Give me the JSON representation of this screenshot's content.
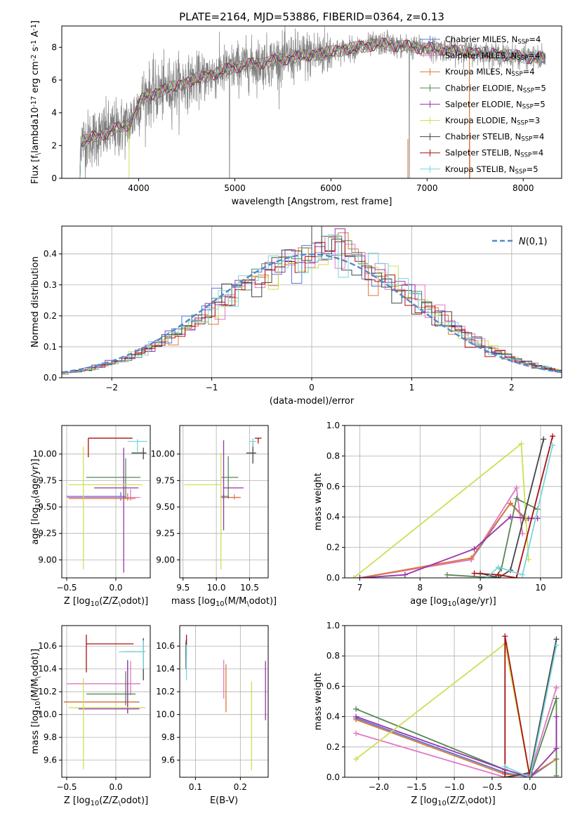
{
  "chart_data": [
    {
      "type": "line",
      "id": "spectrum",
      "title": "PLATE=2164, MJD=53886, FIBERID=0364, z=0.13",
      "xlabel": "wavelength [Angstrom, rest frame]",
      "ylabel": "Flux [f$_\\lambda$10$^{-17}$ erg cm$^{-2}$ s$^{-1}$ A$^{-1}$]",
      "xlim": [
        3200,
        8400
      ],
      "ylim": [
        0,
        9.3
      ],
      "xticks": [
        4000,
        5000,
        6000,
        7000,
        8000
      ],
      "yticks": [
        0,
        2,
        4,
        6,
        8
      ],
      "legend": "upper-right",
      "data_color": "#808080",
      "data_wavelength_range": [
        3370,
        8230
      ],
      "series": [
        {
          "name": "Chabrier MILES, N$_{SSP}$=4",
          "color": "#5577dd"
        },
        {
          "name": "Salpeter MILES, N$_{SSP}$=4",
          "color": "#e377c2"
        },
        {
          "name": "Kroupa MILES, N$_{SSP}$=4",
          "color": "#dd7733"
        },
        {
          "name": "Chabrier ELODIE, N$_{SSP}$=5",
          "color": "#558855"
        },
        {
          "name": "Salpeter ELODIE, N$_{SSP}$=5",
          "color": "#9933aa"
        },
        {
          "name": "Kroupa ELODIE, N$_{SSP}$=3",
          "color": "#cce055"
        },
        {
          "name": "Chabrier STELIB, N$_{SSP}$=4",
          "color": "#444444"
        },
        {
          "name": "Salpeter STELIB, N$_{SSP}$=4",
          "color": "#aa1111"
        },
        {
          "name": "Kroupa STELIB, N$_{SSP}$=5",
          "color": "#77d6dd"
        }
      ]
    },
    {
      "type": "histogram",
      "id": "residuals",
      "xlabel": "(data-model)/error",
      "ylabel": "Normed distribution",
      "xlim": [
        -2.5,
        2.5
      ],
      "ylim": [
        0,
        0.49
      ],
      "xticks": [
        -2,
        -1,
        0,
        1,
        2
      ],
      "yticks": [
        0.0,
        0.1,
        0.2,
        0.3,
        0.4
      ],
      "grid": true,
      "legend": "upper-right",
      "reference": {
        "name": "$\\mathcal{N}(0,1)$",
        "color": "#5588cc",
        "style": "dashed"
      }
    },
    {
      "type": "scatter",
      "id": "age-vs-Z",
      "xlabel": "Z [log$_{10}$(Z/Z$_\\odot$)]",
      "ylabel": "age  [log$_{10}$(age/yr)]",
      "xlim": [
        -0.55,
        0.35
      ],
      "ylim": [
        8.83,
        10.27
      ],
      "xticks": [
        -0.5,
        0.0
      ],
      "yticks": [
        9.0,
        9.25,
        9.5,
        9.75,
        10.0
      ],
      "grid": true,
      "points": [
        {
          "x": 0.05,
          "xerr": [
            0.55,
            0.05
          ],
          "y": 9.6,
          "yerr": [
            0.04,
            0.04
          ],
          "color": "#5577dd"
        },
        {
          "x": 0.15,
          "xerr": [
            0.65,
            0.1
          ],
          "y": 9.59,
          "yerr": [
            0.03,
            0.08
          ],
          "color": "#e377c2"
        },
        {
          "x": 0.12,
          "xerr": [
            0.6,
            0.08
          ],
          "y": 9.58,
          "yerr": [
            0.02,
            0.05
          ],
          "color": "#dd7733"
        },
        {
          "x": 0.1,
          "xerr": [
            0.4,
            0.15
          ],
          "y": 9.78,
          "yerr": [
            0.2,
            0.18
          ],
          "color": "#558855"
        },
        {
          "x": 0.08,
          "xerr": [
            0.3,
            0.15
          ],
          "y": 9.68,
          "yerr": [
            0.8,
            0.38
          ],
          "color": "#9933aa"
        },
        {
          "x": -0.33,
          "xerr": [
            0.15,
            0.6
          ],
          "y": 9.71,
          "yerr": [
            0.8,
            0.36
          ],
          "color": "#cce055"
        },
        {
          "x": 0.28,
          "xerr": [
            0.12,
            0.03
          ],
          "y": 10.01,
          "yerr": [
            0.06,
            0.05
          ],
          "color": "#444444"
        },
        {
          "x": -0.28,
          "xerr": [
            0.0,
            0.45
          ],
          "y": 10.15,
          "yerr": [
            0.18,
            0.0
          ],
          "color": "#aa1111"
        },
        {
          "x": 0.22,
          "xerr": [
            0.1,
            0.1
          ],
          "y": 10.12,
          "yerr": [
            0.1,
            0.02
          ],
          "color": "#77d6dd"
        }
      ]
    },
    {
      "type": "scatter",
      "id": "age-vs-mass",
      "xlabel": "mass [log$_{10}$(M/M$_\\odot$)]",
      "xlim": [
        9.45,
        10.78
      ],
      "ylim": [
        8.83,
        10.27
      ],
      "xticks": [
        9.5,
        10.0,
        10.5
      ],
      "yticks": [
        9.0,
        9.25,
        9.5,
        9.75,
        10.0
      ],
      "grid": true,
      "points": [
        {
          "x": 10.11,
          "xerr": [
            0.05,
            0.08
          ],
          "y": 9.6,
          "yerr": [
            0.03,
            0.03
          ],
          "color": "#5577dd"
        },
        {
          "x": 10.27,
          "xerr": [
            0.1,
            0.1
          ],
          "y": 9.59,
          "yerr": [
            0.02,
            0.03
          ],
          "color": "#e377c2"
        },
        {
          "x": 10.11,
          "xerr": [
            0.05,
            0.25
          ],
          "y": 9.59,
          "yerr": [
            0.02,
            0.02
          ],
          "color": "#dd7733"
        },
        {
          "x": 10.18,
          "xerr": [
            0.1,
            0.15
          ],
          "y": 9.78,
          "yerr": [
            0.2,
            0.2
          ],
          "color": "#558855"
        },
        {
          "x": 10.11,
          "xerr": [
            0.01,
            0.3
          ],
          "y": 9.68,
          "yerr": [
            0.4,
            0.45
          ],
          "color": "#9933aa"
        },
        {
          "x": 10.07,
          "xerr": [
            0.55,
            0.0
          ],
          "y": 9.71,
          "yerr": [
            0.8,
            0.3
          ],
          "color": "#cce055"
        },
        {
          "x": 10.55,
          "xerr": [
            0.1,
            0.05
          ],
          "y": 10.01,
          "yerr": [
            0.1,
            0.1
          ],
          "color": "#444444"
        },
        {
          "x": 10.63,
          "xerr": [
            0.05,
            0.05
          ],
          "y": 10.15,
          "yerr": [
            0.05,
            0.0
          ],
          "color": "#aa1111"
        },
        {
          "x": 10.55,
          "xerr": [
            0.05,
            0.05
          ],
          "y": 10.12,
          "yerr": [
            0.05,
            0.03
          ],
          "color": "#77d6dd"
        }
      ]
    },
    {
      "type": "line",
      "id": "weight-vs-age",
      "xlabel": "age  [log$_{10}$(age/yr)]",
      "ylabel": "mass weight",
      "xlim": [
        6.75,
        10.35
      ],
      "ylim": [
        0,
        1
      ],
      "xticks": [
        7,
        8,
        9,
        10
      ],
      "yticks": [
        0.0,
        0.2,
        0.4,
        0.6,
        0.8,
        1.0
      ],
      "grid": true,
      "series": [
        {
          "color": "#5577dd",
          "x": [
            7.0,
            8.85,
            9.5,
            9.75
          ],
          "y": [
            0.0,
            0.12,
            0.49,
            0.39
          ]
        },
        {
          "color": "#e377c2",
          "x": [
            7.0,
            8.85,
            9.6,
            9.7
          ],
          "y": [
            0.0,
            0.12,
            0.59,
            0.29
          ]
        },
        {
          "color": "#dd7733",
          "x": [
            7.0,
            8.85,
            9.5,
            9.75
          ],
          "y": [
            0.0,
            0.13,
            0.49,
            0.38
          ]
        },
        {
          "color": "#558855",
          "x": [
            8.45,
            9.25,
            9.35,
            9.6,
            9.95
          ],
          "y": [
            0.02,
            0.0,
            0.06,
            0.52,
            0.45
          ]
        },
        {
          "color": "#9933aa",
          "x": [
            7.0,
            7.75,
            8.9,
            9.5,
            9.8,
            9.95
          ],
          "y": [
            0.0,
            0.02,
            0.19,
            0.4,
            0.39,
            0.39
          ]
        },
        {
          "color": "#cce055",
          "x": [
            6.9,
            9.68,
            9.8
          ],
          "y": [
            0.0,
            0.88,
            0.12
          ]
        },
        {
          "color": "#444444",
          "x": [
            9.0,
            9.3,
            9.5,
            10.05
          ],
          "y": [
            0.03,
            0.0,
            0.05,
            0.91
          ]
        },
        {
          "color": "#aa1111",
          "x": [
            8.9,
            9.3,
            9.6,
            10.2
          ],
          "y": [
            0.03,
            0.02,
            0.0,
            0.93
          ]
        },
        {
          "color": "#77d6dd",
          "x": [
            9.1,
            9.3,
            9.7,
            10.2
          ],
          "y": [
            0.0,
            0.07,
            0.02,
            0.87
          ]
        }
      ]
    },
    {
      "type": "scatter",
      "id": "mass-vs-Z",
      "xlabel": "Z [log$_{10}$(Z/Z$_\\odot$)]",
      "ylabel": "mass [log$_{10}$(M/M$_\\odot$)]",
      "xlim": [
        -0.55,
        0.35
      ],
      "ylim": [
        9.45,
        10.78
      ],
      "xticks": [
        -0.5,
        0.0
      ],
      "yticks": [
        9.6,
        9.8,
        10.0,
        10.2,
        10.4,
        10.6
      ],
      "grid": true,
      "points": [
        {
          "x": 0.12,
          "xerr": [
            0.65,
            0.12
          ],
          "y": 10.11,
          "yerr": [
            0.1,
            0.37
          ],
          "color": "#5577dd"
        },
        {
          "x": 0.15,
          "xerr": [
            0.65,
            0.1
          ],
          "y": 10.27,
          "yerr": [
            0.1,
            0.2
          ],
          "color": "#e377c2"
        },
        {
          "x": 0.12,
          "xerr": [
            0.65,
            0.1
          ],
          "y": 10.11,
          "yerr": [
            0.05,
            0.2
          ],
          "color": "#dd7733"
        },
        {
          "x": 0.1,
          "xerr": [
            0.4,
            0.1
          ],
          "y": 10.18,
          "yerr": [
            0.1,
            0.2
          ],
          "color": "#558855"
        },
        {
          "x": 0.12,
          "xerr": [
            0.5,
            0.12
          ],
          "y": 10.05,
          "yerr": [
            0.04,
            0.42
          ],
          "color": "#9933aa"
        },
        {
          "x": -0.33,
          "xerr": [
            0.15,
            0.63
          ],
          "y": 10.06,
          "yerr": [
            0.54,
            0.26
          ],
          "color": "#cce055"
        },
        {
          "x": 0.28,
          "xerr": [
            0.2,
            0.02
          ],
          "y": 10.55,
          "yerr": [
            0.25,
            0.12
          ],
          "color": "#444444"
        },
        {
          "x": -0.3,
          "xerr": [
            0.0,
            0.48
          ],
          "y": 10.62,
          "yerr": [
            0.25,
            0.08
          ],
          "color": "#aa1111"
        },
        {
          "x": 0.28,
          "xerr": [
            0.25,
            0.02
          ],
          "y": 10.55,
          "yerr": [
            0.15,
            0.1
          ],
          "color": "#77d6dd"
        }
      ]
    },
    {
      "type": "scatter",
      "id": "mass-vs-EBV",
      "xlabel": "E(B-V)",
      "xlim": [
        0.065,
        0.262
      ],
      "ylim": [
        9.45,
        10.78
      ],
      "xticks": [
        0.1,
        0.2
      ],
      "yticks": [
        9.6,
        9.8,
        10.0,
        10.2,
        10.4,
        10.6
      ],
      "grid": true,
      "points": [
        {
          "x": 0.08,
          "y": 10.62,
          "yerr": [
            0.1,
            0.05
          ],
          "color": "#5577dd"
        },
        {
          "x": 0.163,
          "y": 10.26,
          "yerr": [
            0.12,
            0.22
          ],
          "color": "#e377c2"
        },
        {
          "x": 0.168,
          "y": 10.18,
          "yerr": [
            0.16,
            0.26
          ],
          "color": "#dd7733"
        },
        {
          "x": 0.079,
          "y": 10.57,
          "yerr": [
            0.1,
            0.08
          ],
          "color": "#558855"
        },
        {
          "x": 0.256,
          "y": 10.11,
          "yerr": [
            0.16,
            0.36
          ],
          "color": "#9933aa"
        },
        {
          "x": 0.225,
          "y": 10.06,
          "yerr": [
            0.55,
            0.23
          ],
          "color": "#cce055"
        },
        {
          "x": 0.079,
          "y": 10.6,
          "yerr": [
            0.2,
            0.03
          ],
          "color": "#444444"
        },
        {
          "x": 0.08,
          "y": 10.65,
          "yerr": [
            0.03,
            0.05
          ],
          "color": "#aa1111"
        },
        {
          "x": 0.08,
          "y": 10.55,
          "yerr": [
            0.25,
            0.06
          ],
          "color": "#77d6dd"
        }
      ]
    },
    {
      "type": "line",
      "id": "weight-vs-Z",
      "xlabel": "Z [log$_{10}$(Z/Z$_\\odot$)]",
      "ylabel": "mass weight",
      "xlim": [
        -2.45,
        0.42
      ],
      "ylim": [
        0,
        1
      ],
      "xticks": [
        -2.0,
        -1.5,
        -1.0,
        -0.5,
        0.0
      ],
      "yticks": [
        0.0,
        0.2,
        0.4,
        0.6,
        0.8,
        1.0
      ],
      "grid": true,
      "series": [
        {
          "color": "#5577dd",
          "x": [
            -2.3,
            -0.33,
            0.0,
            0.35
          ],
          "y": [
            0.39,
            0.03,
            0.0,
            0.12
          ]
        },
        {
          "color": "#e377c2",
          "x": [
            -2.3,
            -0.33,
            0.0,
            0.35,
            0.35
          ],
          "y": [
            0.29,
            0.0,
            0.02,
            0.59,
            0.59
          ]
        },
        {
          "color": "#dd7733",
          "x": [
            -2.3,
            -0.33,
            0.0,
            0.35
          ],
          "y": [
            0.38,
            0.02,
            0.01,
            0.12
          ]
        },
        {
          "color": "#558855",
          "x": [
            -2.3,
            -0.33,
            0.0,
            0.35,
            0.35
          ],
          "y": [
            0.45,
            0.05,
            0.0,
            0.52,
            0.01
          ]
        },
        {
          "color": "#9933aa",
          "x": [
            -2.3,
            -0.33,
            0.0,
            0.35,
            0.35
          ],
          "y": [
            0.4,
            0.05,
            0.0,
            0.19,
            0.4
          ]
        },
        {
          "color": "#cce055",
          "x": [
            -2.3,
            -0.33,
            0.0
          ],
          "y": [
            0.12,
            0.88,
            0.0
          ]
        },
        {
          "color": "#444444",
          "x": [
            -0.33,
            0.0,
            0.35
          ],
          "y": [
            0.0,
            0.03,
            0.91
          ]
        },
        {
          "color": "#aa1111",
          "x": [
            -0.33,
            -0.33,
            0.0
          ],
          "y": [
            0.0,
            0.93,
            0.0
          ]
        },
        {
          "color": "#77d6dd",
          "x": [
            -0.33,
            0.0,
            0.35
          ],
          "y": [
            0.07,
            0.0,
            0.87
          ]
        }
      ]
    }
  ]
}
